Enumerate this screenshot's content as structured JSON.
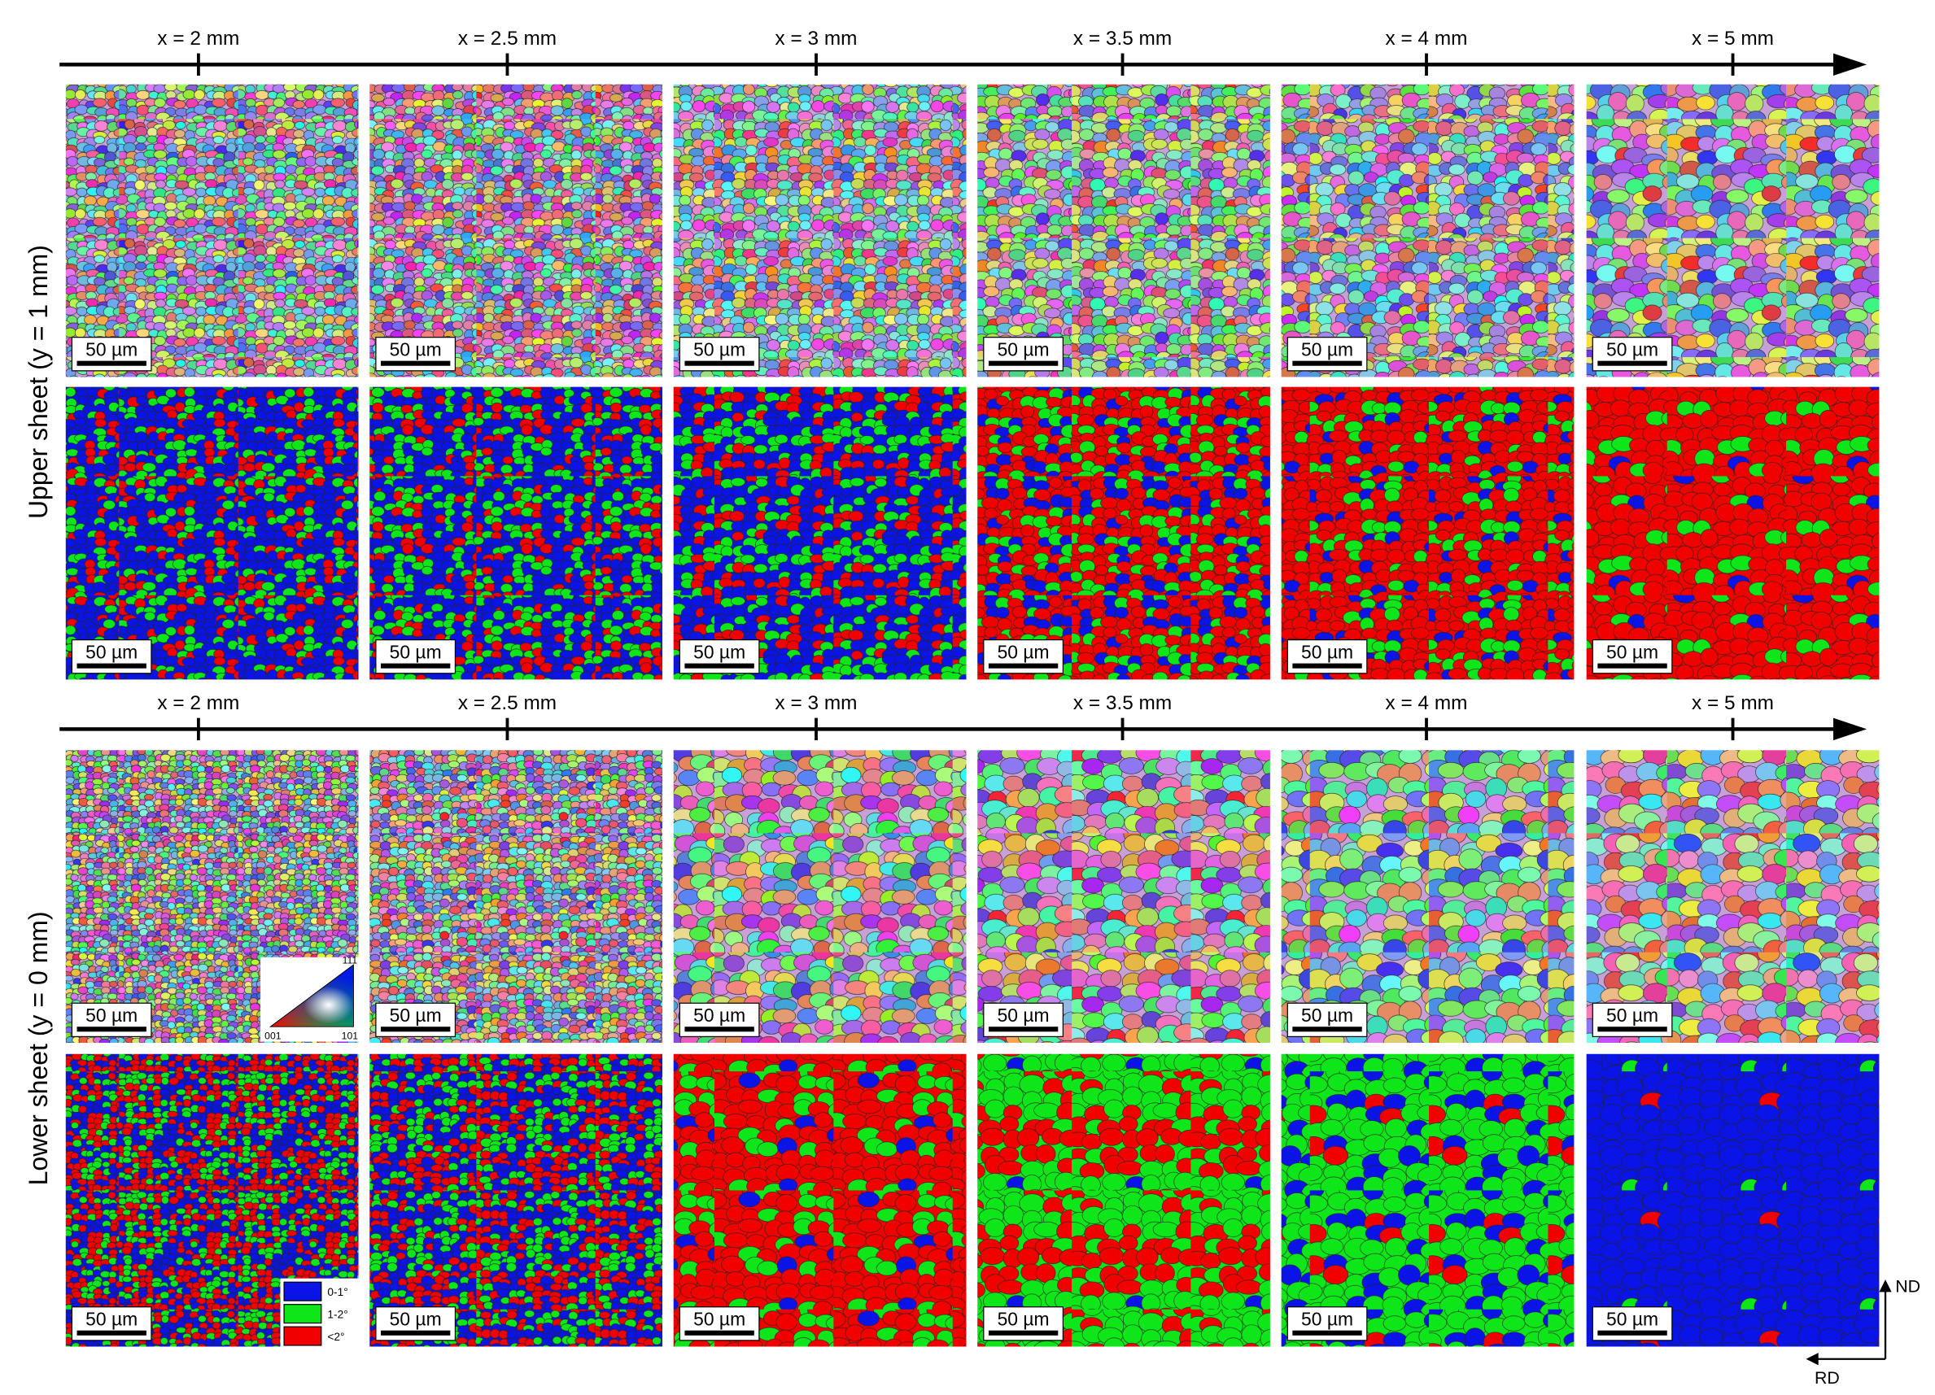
{
  "sections": [
    {
      "row_label": "Upper sheet (y = 1 mm)",
      "positions": [
        "x = 2 mm",
        "x = 2.5 mm",
        "x = 3 mm",
        "x = 3.5 mm",
        "x = 4 mm",
        "x = 5 mm"
      ],
      "scale_bars": [
        [
          "50 µm",
          "50 µm",
          "50 µm",
          "50 µm",
          "50 µm",
          "50 µm"
        ],
        [
          "50 µm",
          "50 µm",
          "50 µm",
          "50 µm",
          "50 µm",
          "50 µm"
        ]
      ]
    },
    {
      "row_label": "Lower sheet (y = 0 mm)",
      "positions": [
        "x = 2 mm",
        "x = 2.5 mm",
        "x = 3 mm",
        "x = 3.5 mm",
        "x = 4 mm",
        "x = 5 mm"
      ],
      "scale_bars": [
        [
          "50 µm",
          "50 µm",
          "50 µm",
          "50 µm",
          "50 µm",
          "50 µm"
        ],
        [
          "50 µm",
          "50 µm",
          "50 µm",
          "50 µm",
          "50 µm",
          "50 µm"
        ]
      ]
    }
  ],
  "ipf_legend": {
    "corners": [
      "111",
      "001",
      "101"
    ]
  },
  "kam_legend": {
    "labels": [
      "0-1°",
      "1-2°",
      "<2°"
    ]
  },
  "axes": {
    "vertical": "ND",
    "horizontal": "RD"
  }
}
